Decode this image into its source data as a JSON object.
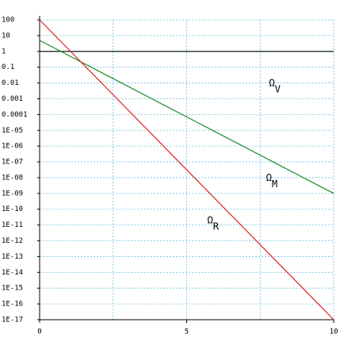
{
  "chart_data": {
    "type": "line",
    "x": [
      0,
      10
    ],
    "series": [
      {
        "name": "ΩV",
        "color": "#000000",
        "values": [
          1,
          1
        ]
      },
      {
        "name": "ΩM",
        "color": "#1a8a2a",
        "values": [
          5,
          1e-09
        ]
      },
      {
        "name": "ΩR",
        "color": "#e02020",
        "values": [
          100,
          1e-17
        ]
      }
    ],
    "annotations": [
      {
        "symbol": "Ω",
        "subscript": "V",
        "x": 7.8,
        "y": 0.005
      },
      {
        "symbol": "Ω",
        "subscript": "M",
        "x": 7.7,
        "y": 5e-09
      },
      {
        "symbol": "Ω",
        "subscript": "R",
        "x": 5.7,
        "y": 1e-11
      }
    ],
    "xlim": [
      0,
      10
    ],
    "xticks": [
      0,
      5,
      10
    ],
    "x_minor_ticks": [
      2.5,
      7.5
    ],
    "ylim": [
      1e-17,
      100
    ],
    "log_y": true,
    "grid": true,
    "yticks": [
      100,
      10,
      1,
      0.1,
      0.01,
      0.001,
      0.0001,
      {
        "value": 1e-05,
        "label": "1E-05"
      },
      {
        "value": 1e-06,
        "label": "1E-06"
      },
      {
        "value": 1e-07,
        "label": "1E-07"
      },
      {
        "value": 1e-08,
        "label": "1E-08"
      },
      {
        "value": 1e-09,
        "label": "1E-09"
      },
      {
        "value": 1e-10,
        "label": "1E-10"
      },
      {
        "value": 1e-11,
        "label": "1E-11"
      },
      {
        "value": 1e-12,
        "label": "1E-12"
      },
      {
        "value": 1e-13,
        "label": "1E-13"
      },
      {
        "value": 1e-14,
        "label": "1E-14"
      },
      {
        "value": 1e-15,
        "label": "1E-15"
      },
      {
        "value": 1e-16,
        "label": "1E-16"
      },
      {
        "value": 1e-17,
        "label": "1E-17"
      }
    ]
  }
}
